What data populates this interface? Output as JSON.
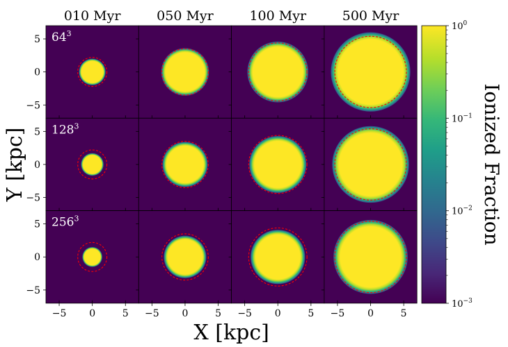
{
  "chart_data": {
    "type": "heatmap",
    "col_titles": [
      "010 Myr",
      "050 Myr",
      "100 Myr",
      "500 Myr"
    ],
    "row_labels": [
      {
        "base": "64",
        "sup": "3"
      },
      {
        "base": "128",
        "sup": "3"
      },
      {
        "base": "256",
        "sup": "3"
      }
    ],
    "xlabel": "X [kpc]",
    "ylabel": "Y [kpc]",
    "xlim": [
      -7,
      7
    ],
    "ylim": [
      -7,
      7
    ],
    "x_ticks": [
      -5,
      0,
      5
    ],
    "y_ticks": [
      -5,
      0,
      5
    ],
    "x_tick_labels": [
      "−5",
      "0",
      "5"
    ],
    "y_tick_labels": [
      "−5",
      "0",
      "5"
    ],
    "colorbar": {
      "label": "Ionized Fraction",
      "scale": "log",
      "range": [
        0.001,
        1
      ],
      "ticks": [
        {
          "value": 1,
          "base": "10",
          "exp": "0"
        },
        {
          "value": 0.1,
          "base": "10",
          "exp": "−1"
        },
        {
          "value": 0.01,
          "base": "10",
          "exp": "−2"
        },
        {
          "value": 0.001,
          "base": "10",
          "exp": "−3"
        }
      ],
      "colors": [
        "#440154",
        "#482878",
        "#3e4989",
        "#31688e",
        "#26828e",
        "#1f9e89",
        "#35b779",
        "#6ece58",
        "#b5de2b",
        "#fde725"
      ]
    },
    "background_value": 0.001,
    "ionized_radius_kpc": [
      [
        2.0,
        3.6,
        4.6,
        6.0
      ],
      [
        1.7,
        3.4,
        4.3,
        5.8
      ],
      [
        1.5,
        3.2,
        4.1,
        5.6
      ]
    ],
    "analytic_radius_kpc": [
      [
        2.2,
        3.5,
        4.4,
        5.4
      ],
      [
        2.2,
        3.5,
        4.4,
        5.4
      ],
      [
        2.2,
        3.5,
        4.4,
        5.4
      ]
    ],
    "analytic_line": {
      "color": "#ff0000",
      "style": "dashed"
    }
  }
}
